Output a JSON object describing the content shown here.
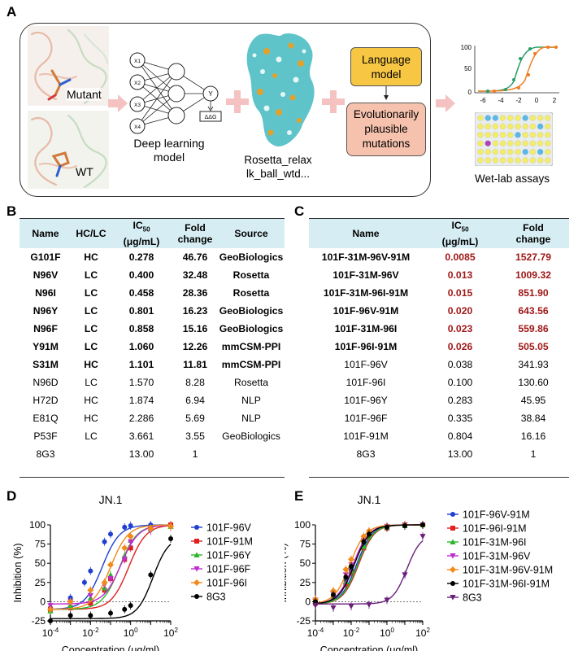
{
  "panel_labels": {
    "a": "A",
    "b": "B",
    "c": "C",
    "d": "D",
    "e": "E"
  },
  "panel_a": {
    "mutant_label": "Mutant",
    "wt_label": "WT",
    "nodes": [
      "X1",
      "X2",
      "X3",
      "X4"
    ],
    "output_node": "Y",
    "ddg_label": "ΔΔG",
    "dl_caption_line1": "Deep learning",
    "dl_caption_line2": "model",
    "rosetta_line1": "Rosetta_relax",
    "rosetta_line2": "lk_ball_wtd...",
    "language_model_line1": "Language",
    "language_model_line2": "model",
    "evo_line1": "Evolutionarily",
    "evo_line2": "plausible",
    "evo_line3": "mutations",
    "wetlab_caption": "Wet-lab assays",
    "mini_yticks": [
      "100",
      "50",
      "0"
    ],
    "mini_xticks": [
      "-6",
      "-4",
      "-2",
      "0",
      "2"
    ]
  },
  "table_b": {
    "headers": [
      "Name",
      "HC/LC",
      "IC50 (μg/mL)",
      "Fold change",
      "Source"
    ],
    "ic50_header_main": "IC",
    "ic50_header_sub": "50",
    "ic50_header_unit": "(μg/mL)",
    "fold_header_1": "Fold",
    "fold_header_2": "change",
    "rows": [
      [
        "G101F",
        "HC",
        "0.278",
        "46.76",
        "GeoBiologics"
      ],
      [
        "N96V",
        "LC",
        "0.400",
        "32.48",
        "Rosetta"
      ],
      [
        "N96I",
        "LC",
        "0.458",
        "28.36",
        "Rosetta"
      ],
      [
        "N96Y",
        "LC",
        "0.801",
        "16.23",
        "GeoBiologics"
      ],
      [
        "N96F",
        "LC",
        "0.858",
        "15.16",
        "GeoBiologics"
      ],
      [
        "Y91M",
        "LC",
        "1.060",
        "12.26",
        "mmCSM-PPI"
      ],
      [
        "S31M",
        "HC",
        "1.101",
        "11.81",
        "mmCSM-PPI"
      ],
      [
        "N96D",
        "LC",
        "1.570",
        "8.28",
        "Rosetta"
      ],
      [
        "H72D",
        "HC",
        "1.874",
        "6.94",
        "NLP"
      ],
      [
        "E81Q",
        "HC",
        "2.286",
        "5.69",
        "NLP"
      ],
      [
        "P53F",
        "LC",
        "3.661",
        "3.55",
        "GeoBiologics"
      ],
      [
        "8G3",
        "",
        "13.00",
        "1",
        ""
      ]
    ]
  },
  "table_c": {
    "headers": [
      "Name",
      "IC50 (μg/mL)",
      "Fold change"
    ],
    "rows": [
      [
        "101F-31M-96V-91M",
        "0.0085",
        "1527.79"
      ],
      [
        "101F-31M-96V",
        "0.013",
        "1009.32"
      ],
      [
        "101F-31M-96I-91M",
        "0.015",
        "851.90"
      ],
      [
        "101F-96V-91M",
        "0.020",
        "643.56"
      ],
      [
        "101F-31M-96I",
        "0.023",
        "559.86"
      ],
      [
        "101F-96I-91M",
        "0.026",
        "505.05"
      ],
      [
        "101F-96V",
        "0.038",
        "341.93"
      ],
      [
        "101F-96I",
        "0.100",
        "130.60"
      ],
      [
        "101F-96Y",
        "0.283",
        "45.95"
      ],
      [
        "101F-96F",
        "0.335",
        "38.84"
      ],
      [
        "101F-91M",
        "0.804",
        "16.16"
      ],
      [
        "8G3",
        "13.00",
        "1"
      ]
    ]
  },
  "chart_data": [
    {
      "type": "line",
      "title": "JN.1",
      "xlabel": "Concentration (μg/ml)",
      "ylabel": "Inhibition (%)",
      "x_scale": "log",
      "xlim": [
        0.0001,
        100
      ],
      "ylim": [
        -25,
        100
      ],
      "yticks": [
        "-25",
        "0",
        "25",
        "50",
        "75",
        "100"
      ],
      "xtick_base": "10",
      "xtick_exps": [
        "-4",
        "-2",
        "0",
        "2"
      ],
      "legend_placement": "right",
      "series": [
        {
          "name": "101F-96V",
          "color": "#1f3fd1",
          "marker": "circle",
          "ic50": 0.038,
          "points": [
            [
              0.0001,
              -8
            ],
            [
              0.001,
              5
            ],
            [
              0.005,
              25
            ],
            [
              0.01,
              40
            ],
            [
              0.05,
              78
            ],
            [
              0.1,
              88
            ],
            [
              0.5,
              97
            ],
            [
              1,
              99
            ],
            [
              10,
              100
            ],
            [
              100,
              100
            ]
          ]
        },
        {
          "name": "101F-91M",
          "color": "#e02020",
          "marker": "square",
          "ic50": 0.804,
          "points": [
            [
              0.0001,
              -10
            ],
            [
              0.001,
              -8
            ],
            [
              0.01,
              -2
            ],
            [
              0.05,
              15
            ],
            [
              0.1,
              30
            ],
            [
              0.5,
              55
            ],
            [
              1,
              70
            ],
            [
              10,
              95
            ],
            [
              100,
              100
            ]
          ]
        },
        {
          "name": "101F-96Y",
          "color": "#2cb52c",
          "marker": "triangle",
          "ic50": 0.283,
          "points": [
            [
              0.0001,
              -12
            ],
            [
              0.001,
              -5
            ],
            [
              0.01,
              5
            ],
            [
              0.05,
              18
            ],
            [
              0.1,
              35
            ],
            [
              0.5,
              60
            ],
            [
              1,
              80
            ],
            [
              10,
              95
            ],
            [
              100,
              98
            ]
          ]
        },
        {
          "name": "101F-96F",
          "color": "#c02ad0",
          "marker": "triangle-down",
          "ic50": 0.335,
          "points": [
            [
              0.0001,
              -5
            ],
            [
              0.001,
              0
            ],
            [
              0.01,
              8
            ],
            [
              0.05,
              22
            ],
            [
              0.1,
              30
            ],
            [
              0.5,
              55
            ],
            [
              1,
              78
            ],
            [
              10,
              92
            ],
            [
              100,
              97
            ]
          ]
        },
        {
          "name": "101F-96I",
          "color": "#f08a1a",
          "marker": "diamond",
          "ic50": 0.1,
          "points": [
            [
              0.0001,
              -10
            ],
            [
              0.001,
              0
            ],
            [
              0.01,
              15
            ],
            [
              0.05,
              25
            ],
            [
              0.1,
              48
            ],
            [
              0.5,
              70
            ],
            [
              1,
              85
            ],
            [
              10,
              95
            ],
            [
              100,
              98
            ]
          ]
        },
        {
          "name": "8G3",
          "color": "#000000",
          "marker": "circle",
          "ic50": 13.0,
          "points": [
            [
              0.0001,
              -25
            ],
            [
              0.001,
              -18
            ],
            [
              0.01,
              -18
            ],
            [
              0.1,
              -15
            ],
            [
              0.5,
              -10
            ],
            [
              1,
              -5
            ],
            [
              10,
              35
            ],
            [
              100,
              82
            ]
          ]
        }
      ]
    },
    {
      "type": "line",
      "title": "JN.1",
      "xlabel": "Concentration (μg/ml)",
      "ylabel": "Inhibition (%)",
      "x_scale": "log",
      "xlim": [
        0.0001,
        100
      ],
      "ylim": [
        -25,
        100
      ],
      "yticks": [
        "-25",
        "0",
        "25",
        "50",
        "75",
        "100"
      ],
      "xtick_base": "10",
      "xtick_exps": [
        "-4",
        "-2",
        "0",
        "2"
      ],
      "legend_placement": "right",
      "series": [
        {
          "name": "101F-96V-91M",
          "color": "#1f3fd1",
          "marker": "circle",
          "ic50": 0.02,
          "points": [
            [
              0.0001,
              0
            ],
            [
              0.001,
              8
            ],
            [
              0.005,
              28
            ],
            [
              0.01,
              42
            ],
            [
              0.05,
              75
            ],
            [
              0.1,
              86
            ],
            [
              1,
              97
            ],
            [
              10,
              99
            ],
            [
              100,
              100
            ]
          ]
        },
        {
          "name": "101F-96I-91M",
          "color": "#e02020",
          "marker": "square",
          "ic50": 0.026,
          "points": [
            [
              0.0001,
              -2
            ],
            [
              0.001,
              5
            ],
            [
              0.005,
              22
            ],
            [
              0.01,
              38
            ],
            [
              0.05,
              70
            ],
            [
              0.1,
              84
            ],
            [
              1,
              96
            ],
            [
              10,
              99
            ],
            [
              100,
              100
            ]
          ]
        },
        {
          "name": "101F-31M-96I",
          "color": "#2cb52c",
          "marker": "triangle",
          "ic50": 0.023,
          "points": [
            [
              0.0001,
              0
            ],
            [
              0.001,
              6
            ],
            [
              0.005,
              26
            ],
            [
              0.01,
              40
            ],
            [
              0.05,
              72
            ],
            [
              0.1,
              85
            ],
            [
              1,
              97
            ],
            [
              10,
              99
            ],
            [
              100,
              100
            ]
          ]
        },
        {
          "name": "101F-31M-96V",
          "color": "#c02ad0",
          "marker": "triangle-down",
          "ic50": 0.013,
          "points": [
            [
              0.0001,
              2
            ],
            [
              0.001,
              10
            ],
            [
              0.005,
              35
            ],
            [
              0.01,
              48
            ],
            [
              0.05,
              80
            ],
            [
              0.1,
              90
            ],
            [
              1,
              98
            ],
            [
              10,
              100
            ],
            [
              100,
              100
            ]
          ]
        },
        {
          "name": "101F-31M-96V-91M",
          "color": "#f08a1a",
          "marker": "diamond",
          "ic50": 0.0085,
          "points": [
            [
              0.0001,
              3
            ],
            [
              0.001,
              14
            ],
            [
              0.005,
              42
            ],
            [
              0.01,
              55
            ],
            [
              0.05,
              85
            ],
            [
              0.1,
              92
            ],
            [
              1,
              98
            ],
            [
              10,
              100
            ],
            [
              100,
              100
            ]
          ]
        },
        {
          "name": "101F-31M-96I-91M",
          "color": "#000000",
          "marker": "circle",
          "ic50": 0.015,
          "points": [
            [
              0.0001,
              0
            ],
            [
              0.001,
              9
            ],
            [
              0.005,
              32
            ],
            [
              0.01,
              46
            ],
            [
              0.05,
              78
            ],
            [
              0.1,
              88
            ],
            [
              1,
              97
            ],
            [
              10,
              99
            ],
            [
              100,
              100
            ]
          ]
        },
        {
          "name": "8G3",
          "color": "#6b1f7a",
          "marker": "triangle-down",
          "ic50": 13.0,
          "points": [
            [
              0.0001,
              -5
            ],
            [
              0.001,
              -8
            ],
            [
              0.01,
              -6
            ],
            [
              0.1,
              -4
            ],
            [
              1,
              2
            ],
            [
              10,
              35
            ],
            [
              100,
              85
            ]
          ]
        }
      ]
    }
  ]
}
